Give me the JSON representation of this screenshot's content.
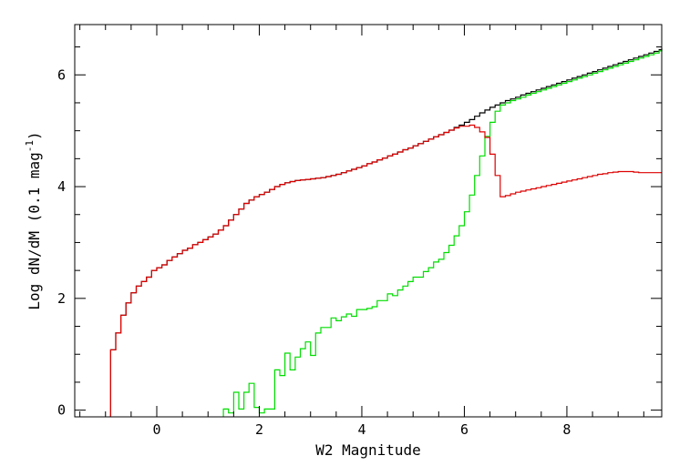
{
  "chart_data": {
    "type": "line",
    "title": "",
    "xlabel": "W2 Magnitude",
    "ylabel": {
      "base": "Log dN/dM (0.1 mag",
      "superscript": "-1",
      "close": ")"
    },
    "xlim": [
      -1.6,
      9.85
    ],
    "ylim": [
      -0.12,
      6.9
    ],
    "x_ticks": [
      0,
      2,
      4,
      6,
      8
    ],
    "y_ticks": [
      0,
      2,
      4,
      6
    ],
    "x_tick_labels": [
      "0",
      "2",
      "4",
      "6",
      "8"
    ],
    "y_tick_labels": [
      "0",
      "2",
      "4",
      "6"
    ],
    "grid": false,
    "step_style": true,
    "series": [
      {
        "color": "#000000",
        "points": [
          [
            -0.9,
            -0.12
          ],
          [
            -0.9,
            1.08
          ],
          [
            -0.8,
            1.38
          ],
          [
            -0.7,
            1.7
          ],
          [
            -0.6,
            1.92
          ],
          [
            -0.5,
            2.1
          ],
          [
            -0.4,
            2.22
          ],
          [
            -0.3,
            2.3
          ],
          [
            -0.2,
            2.38
          ],
          [
            -0.1,
            2.5
          ],
          [
            0.0,
            2.55
          ],
          [
            0.1,
            2.6
          ],
          [
            0.2,
            2.68
          ],
          [
            0.3,
            2.74
          ],
          [
            0.4,
            2.8
          ],
          [
            0.5,
            2.86
          ],
          [
            0.6,
            2.9
          ],
          [
            0.7,
            2.96
          ],
          [
            0.8,
            3.0
          ],
          [
            0.9,
            3.05
          ],
          [
            1.0,
            3.1
          ],
          [
            1.1,
            3.15
          ],
          [
            1.2,
            3.22
          ],
          [
            1.3,
            3.3
          ],
          [
            1.4,
            3.4
          ],
          [
            1.5,
            3.5
          ],
          [
            1.6,
            3.6
          ],
          [
            1.7,
            3.7
          ],
          [
            1.8,
            3.76
          ],
          [
            1.9,
            3.82
          ],
          [
            2.0,
            3.86
          ],
          [
            2.1,
            3.9
          ],
          [
            2.2,
            3.95
          ],
          [
            2.3,
            4.0
          ],
          [
            2.4,
            4.04
          ],
          [
            2.5,
            4.07
          ],
          [
            2.6,
            4.09
          ],
          [
            2.7,
            4.11
          ],
          [
            2.8,
            4.12
          ],
          [
            2.9,
            4.13
          ],
          [
            3.0,
            4.14
          ],
          [
            3.1,
            4.15
          ],
          [
            3.2,
            4.16
          ],
          [
            3.3,
            4.18
          ],
          [
            3.4,
            4.2
          ],
          [
            3.5,
            4.22
          ],
          [
            3.6,
            4.25
          ],
          [
            3.7,
            4.28
          ],
          [
            3.8,
            4.31
          ],
          [
            3.9,
            4.34
          ],
          [
            4.0,
            4.37
          ],
          [
            4.1,
            4.41
          ],
          [
            4.2,
            4.44
          ],
          [
            4.3,
            4.48
          ],
          [
            4.4,
            4.51
          ],
          [
            4.5,
            4.55
          ],
          [
            4.6,
            4.58
          ],
          [
            4.7,
            4.62
          ],
          [
            4.8,
            4.66
          ],
          [
            4.9,
            4.69
          ],
          [
            5.0,
            4.73
          ],
          [
            5.1,
            4.77
          ],
          [
            5.2,
            4.81
          ],
          [
            5.3,
            4.85
          ],
          [
            5.4,
            4.89
          ],
          [
            5.5,
            4.93
          ],
          [
            5.6,
            4.97
          ],
          [
            5.7,
            5.01
          ],
          [
            5.8,
            5.06
          ],
          [
            5.9,
            5.1
          ],
          [
            6.0,
            5.15
          ],
          [
            6.1,
            5.2
          ],
          [
            6.2,
            5.26
          ],
          [
            6.3,
            5.32
          ],
          [
            6.4,
            5.37
          ],
          [
            6.5,
            5.42
          ],
          [
            6.6,
            5.46
          ],
          [
            6.7,
            5.5
          ],
          [
            6.8,
            5.54
          ],
          [
            6.9,
            5.57
          ],
          [
            7.0,
            5.6
          ],
          [
            7.1,
            5.64
          ],
          [
            7.2,
            5.67
          ],
          [
            7.3,
            5.7
          ],
          [
            7.4,
            5.73
          ],
          [
            7.5,
            5.76
          ],
          [
            7.6,
            5.79
          ],
          [
            7.7,
            5.82
          ],
          [
            7.8,
            5.85
          ],
          [
            7.9,
            5.88
          ],
          [
            8.0,
            5.91
          ],
          [
            8.1,
            5.94
          ],
          [
            8.2,
            5.97
          ],
          [
            8.3,
            6.0
          ],
          [
            8.4,
            6.03
          ],
          [
            8.5,
            6.06
          ],
          [
            8.6,
            6.09
          ],
          [
            8.7,
            6.12
          ],
          [
            8.8,
            6.15
          ],
          [
            8.9,
            6.18
          ],
          [
            9.0,
            6.21
          ],
          [
            9.1,
            6.24
          ],
          [
            9.2,
            6.27
          ],
          [
            9.3,
            6.3
          ],
          [
            9.4,
            6.33
          ],
          [
            9.5,
            6.36
          ],
          [
            9.6,
            6.39
          ],
          [
            9.7,
            6.42
          ],
          [
            9.8,
            6.45
          ],
          [
            9.85,
            6.48
          ]
        ]
      },
      {
        "color": "#00dd00",
        "points": [
          [
            1.3,
            -0.12
          ],
          [
            1.3,
            0.02
          ],
          [
            1.4,
            -0.05
          ],
          [
            1.5,
            0.32
          ],
          [
            1.6,
            0.02
          ],
          [
            1.7,
            0.32
          ],
          [
            1.8,
            0.48
          ],
          [
            1.9,
            0.05
          ],
          [
            2.0,
            -0.05
          ],
          [
            2.1,
            0.02
          ],
          [
            2.2,
            0.02
          ],
          [
            2.3,
            0.72
          ],
          [
            2.4,
            0.62
          ],
          [
            2.5,
            1.02
          ],
          [
            2.6,
            0.72
          ],
          [
            2.7,
            0.95
          ],
          [
            2.8,
            1.1
          ],
          [
            2.9,
            1.22
          ],
          [
            3.0,
            0.98
          ],
          [
            3.1,
            1.38
          ],
          [
            3.2,
            1.48
          ],
          [
            3.3,
            1.48
          ],
          [
            3.4,
            1.65
          ],
          [
            3.5,
            1.6
          ],
          [
            3.6,
            1.67
          ],
          [
            3.7,
            1.72
          ],
          [
            3.8,
            1.68
          ],
          [
            3.9,
            1.8
          ],
          [
            4.0,
            1.8
          ],
          [
            4.1,
            1.82
          ],
          [
            4.2,
            1.85
          ],
          [
            4.3,
            1.96
          ],
          [
            4.4,
            1.96
          ],
          [
            4.5,
            2.08
          ],
          [
            4.6,
            2.05
          ],
          [
            4.7,
            2.15
          ],
          [
            4.8,
            2.22
          ],
          [
            4.9,
            2.3
          ],
          [
            5.0,
            2.38
          ],
          [
            5.1,
            2.38
          ],
          [
            5.2,
            2.48
          ],
          [
            5.3,
            2.55
          ],
          [
            5.4,
            2.65
          ],
          [
            5.5,
            2.7
          ],
          [
            5.6,
            2.82
          ],
          [
            5.7,
            2.95
          ],
          [
            5.8,
            3.12
          ],
          [
            5.9,
            3.3
          ],
          [
            6.0,
            3.55
          ],
          [
            6.1,
            3.85
          ],
          [
            6.2,
            4.2
          ],
          [
            6.3,
            4.55
          ],
          [
            6.4,
            4.9
          ],
          [
            6.5,
            5.15
          ],
          [
            6.6,
            5.35
          ],
          [
            6.7,
            5.46
          ],
          [
            6.8,
            5.5
          ],
          [
            6.9,
            5.54
          ],
          [
            7.0,
            5.57
          ],
          [
            7.1,
            5.6
          ],
          [
            7.2,
            5.64
          ],
          [
            7.3,
            5.67
          ],
          [
            7.4,
            5.7
          ],
          [
            7.5,
            5.73
          ],
          [
            7.6,
            5.76
          ],
          [
            7.7,
            5.79
          ],
          [
            7.8,
            5.82
          ],
          [
            7.9,
            5.85
          ],
          [
            8.0,
            5.88
          ],
          [
            8.1,
            5.91
          ],
          [
            8.2,
            5.94
          ],
          [
            8.3,
            5.97
          ],
          [
            8.4,
            6.0
          ],
          [
            8.5,
            6.03
          ],
          [
            8.6,
            6.06
          ],
          [
            8.7,
            6.09
          ],
          [
            8.8,
            6.12
          ],
          [
            8.9,
            6.15
          ],
          [
            9.0,
            6.18
          ],
          [
            9.1,
            6.21
          ],
          [
            9.2,
            6.24
          ],
          [
            9.3,
            6.27
          ],
          [
            9.4,
            6.3
          ],
          [
            9.5,
            6.33
          ],
          [
            9.6,
            6.36
          ],
          [
            9.7,
            6.39
          ],
          [
            9.8,
            6.43
          ],
          [
            9.85,
            6.46
          ]
        ]
      },
      {
        "color": "#dd0000",
        "points": [
          [
            -0.9,
            -0.12
          ],
          [
            -0.9,
            1.08
          ],
          [
            -0.8,
            1.38
          ],
          [
            -0.7,
            1.7
          ],
          [
            -0.6,
            1.92
          ],
          [
            -0.5,
            2.1
          ],
          [
            -0.4,
            2.22
          ],
          [
            -0.3,
            2.3
          ],
          [
            -0.2,
            2.38
          ],
          [
            -0.1,
            2.5
          ],
          [
            0.0,
            2.55
          ],
          [
            0.1,
            2.6
          ],
          [
            0.2,
            2.68
          ],
          [
            0.3,
            2.74
          ],
          [
            0.4,
            2.8
          ],
          [
            0.5,
            2.86
          ],
          [
            0.6,
            2.9
          ],
          [
            0.7,
            2.96
          ],
          [
            0.8,
            3.0
          ],
          [
            0.9,
            3.05
          ],
          [
            1.0,
            3.1
          ],
          [
            1.1,
            3.15
          ],
          [
            1.2,
            3.22
          ],
          [
            1.3,
            3.3
          ],
          [
            1.4,
            3.4
          ],
          [
            1.5,
            3.5
          ],
          [
            1.6,
            3.6
          ],
          [
            1.7,
            3.7
          ],
          [
            1.8,
            3.76
          ],
          [
            1.9,
            3.82
          ],
          [
            2.0,
            3.86
          ],
          [
            2.1,
            3.9
          ],
          [
            2.2,
            3.95
          ],
          [
            2.3,
            4.0
          ],
          [
            2.4,
            4.04
          ],
          [
            2.5,
            4.07
          ],
          [
            2.6,
            4.09
          ],
          [
            2.7,
            4.11
          ],
          [
            2.8,
            4.12
          ],
          [
            2.9,
            4.13
          ],
          [
            3.0,
            4.14
          ],
          [
            3.1,
            4.15
          ],
          [
            3.2,
            4.16
          ],
          [
            3.3,
            4.18
          ],
          [
            3.4,
            4.2
          ],
          [
            3.5,
            4.22
          ],
          [
            3.6,
            4.25
          ],
          [
            3.7,
            4.28
          ],
          [
            3.8,
            4.31
          ],
          [
            3.9,
            4.34
          ],
          [
            4.0,
            4.37
          ],
          [
            4.1,
            4.41
          ],
          [
            4.2,
            4.44
          ],
          [
            4.3,
            4.48
          ],
          [
            4.4,
            4.51
          ],
          [
            4.5,
            4.55
          ],
          [
            4.6,
            4.58
          ],
          [
            4.7,
            4.62
          ],
          [
            4.8,
            4.66
          ],
          [
            4.9,
            4.69
          ],
          [
            5.0,
            4.73
          ],
          [
            5.1,
            4.77
          ],
          [
            5.2,
            4.81
          ],
          [
            5.3,
            4.85
          ],
          [
            5.4,
            4.89
          ],
          [
            5.5,
            4.93
          ],
          [
            5.6,
            4.97
          ],
          [
            5.7,
            5.01
          ],
          [
            5.8,
            5.05
          ],
          [
            5.9,
            5.08
          ],
          [
            6.0,
            5.08
          ],
          [
            6.1,
            5.1
          ],
          [
            6.2,
            5.06
          ],
          [
            6.3,
            4.98
          ],
          [
            6.4,
            4.88
          ],
          [
            6.5,
            4.58
          ],
          [
            6.6,
            4.2
          ],
          [
            6.7,
            3.82
          ],
          [
            6.8,
            3.84
          ],
          [
            6.9,
            3.87
          ],
          [
            7.0,
            3.9
          ],
          [
            7.1,
            3.92
          ],
          [
            7.2,
            3.94
          ],
          [
            7.3,
            3.96
          ],
          [
            7.4,
            3.98
          ],
          [
            7.5,
            4.0
          ],
          [
            7.6,
            4.02
          ],
          [
            7.7,
            4.04
          ],
          [
            7.8,
            4.06
          ],
          [
            7.9,
            4.08
          ],
          [
            8.0,
            4.1
          ],
          [
            8.1,
            4.12
          ],
          [
            8.2,
            4.14
          ],
          [
            8.3,
            4.16
          ],
          [
            8.4,
            4.18
          ],
          [
            8.5,
            4.2
          ],
          [
            8.6,
            4.22
          ],
          [
            8.7,
            4.23
          ],
          [
            8.8,
            4.25
          ],
          [
            8.9,
            4.26
          ],
          [
            9.0,
            4.27
          ],
          [
            9.1,
            4.27
          ],
          [
            9.2,
            4.27
          ],
          [
            9.3,
            4.26
          ],
          [
            9.4,
            4.25
          ],
          [
            9.5,
            4.25
          ],
          [
            9.6,
            4.25
          ],
          [
            9.7,
            4.25
          ],
          [
            9.8,
            4.25
          ],
          [
            9.85,
            4.25
          ]
        ]
      }
    ]
  }
}
